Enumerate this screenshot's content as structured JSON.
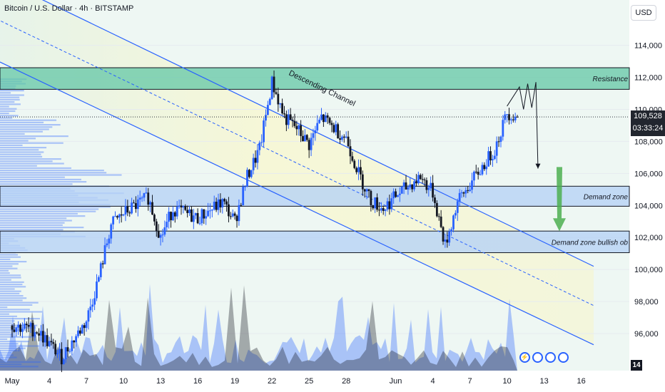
{
  "header": {
    "symbol_title": "Bitcoin / U.S. Dollar · 4h · BITSTAMP",
    "currency": "USD"
  },
  "price_axis": {
    "ticks": [
      "114,000",
      "112,000",
      "110,000",
      "108,000",
      "106,000",
      "104,000",
      "102,000",
      "100,000",
      "98,000",
      "96,000"
    ],
    "current_price": "109,528",
    "countdown": "03:33:24"
  },
  "time_axis": {
    "ticks": [
      "May",
      "4",
      "7",
      "10",
      "13",
      "16",
      "19",
      "22",
      "25",
      "28",
      "Jun",
      "4",
      "7",
      "10",
      "13",
      "16"
    ],
    "timezone_badge": "14"
  },
  "annotations": {
    "resistance": "Resistance",
    "demand_zone": "Demand zone",
    "demand_zone_ob": "Demand zone bullish ob",
    "channel": "Descending Channel"
  },
  "colors": {
    "up": "#2962ff",
    "down": "#131722",
    "resistance_fill": "#63c7a6",
    "demand_fill": "#b7d2f5",
    "channel_line": "#2962ff",
    "arrow_green": "#4caf50"
  },
  "icons": [
    "bolt-icon",
    "flag-icon",
    "flag-icon",
    "flag-icon"
  ],
  "chart_data": {
    "type": "candlestick",
    "symbol": "Bitcoin / U.S. Dollar",
    "timeframe": "4h",
    "exchange": "BITSTAMP",
    "ylim": [
      94000,
      116000
    ],
    "x_range_days": [
      "2025-05-01",
      "2025-06-17"
    ],
    "price_path": [
      {
        "x": "2025-05-01",
        "y": 96500
      },
      {
        "x": "2025-05-03",
        "y": 96200
      },
      {
        "x": "2025-05-05",
        "y": 94500
      },
      {
        "x": "2025-05-07",
        "y": 96800
      },
      {
        "x": "2025-05-08",
        "y": 99500
      },
      {
        "x": "2025-05-09",
        "y": 102800
      },
      {
        "x": "2025-05-10",
        "y": 103500
      },
      {
        "x": "2025-05-12",
        "y": 104500
      },
      {
        "x": "2025-05-13",
        "y": 102000
      },
      {
        "x": "2025-05-14",
        "y": 103800
      },
      {
        "x": "2025-05-16",
        "y": 103200
      },
      {
        "x": "2025-05-18",
        "y": 104200
      },
      {
        "x": "2025-05-19",
        "y": 103000
      },
      {
        "x": "2025-05-20",
        "y": 105800
      },
      {
        "x": "2025-05-21",
        "y": 107500
      },
      {
        "x": "2025-05-22",
        "y": 111700
      },
      {
        "x": "2025-05-23",
        "y": 109500
      },
      {
        "x": "2025-05-24",
        "y": 108800
      },
      {
        "x": "2025-05-25",
        "y": 107800
      },
      {
        "x": "2025-05-26",
        "y": 109500
      },
      {
        "x": "2025-05-28",
        "y": 108200
      },
      {
        "x": "2025-05-29",
        "y": 106000
      },
      {
        "x": "2025-05-30",
        "y": 104300
      },
      {
        "x": "2025-05-31",
        "y": 103800
      },
      {
        "x": "2025-06-01",
        "y": 104600
      },
      {
        "x": "2025-06-03",
        "y": 105800
      },
      {
        "x": "2025-06-04",
        "y": 104800
      },
      {
        "x": "2025-06-05",
        "y": 101500
      },
      {
        "x": "2025-06-06",
        "y": 104200
      },
      {
        "x": "2025-06-07",
        "y": 105300
      },
      {
        "x": "2025-06-09",
        "y": 107500
      },
      {
        "x": "2025-06-10",
        "y": 109800
      },
      {
        "x": "2025-06-10T20:00",
        "y": 109528
      }
    ],
    "current_price": 109528,
    "zones": [
      {
        "name": "Resistance",
        "low": 111250,
        "high": 112600
      },
      {
        "name": "Demand zone",
        "low": 103950,
        "high": 105200
      },
      {
        "name": "Demand zone bullish ob",
        "low": 101050,
        "high": 102400
      }
    ],
    "channel": {
      "name": "Descending Channel",
      "upper": [
        {
          "x": "2025-04-25",
          "y": 120000
        },
        {
          "x": "2025-06-17",
          "y": 100200
        }
      ],
      "lower": [
        {
          "x": "2025-04-25",
          "y": 114800
        },
        {
          "x": "2025-06-17",
          "y": 95300
        }
      ]
    },
    "projection": [
      {
        "x": "2025-06-10",
        "y": 110200
      },
      {
        "x": "2025-06-11",
        "y": 111400
      },
      {
        "x": "2025-06-11T08:00",
        "y": 110000
      },
      {
        "x": "2025-06-11T16:00",
        "y": 111600
      },
      {
        "x": "2025-06-12",
        "y": 110100
      },
      {
        "x": "2025-06-12T08:00",
        "y": 111700
      },
      {
        "x": "2025-06-12T12:00",
        "y": 106300
      }
    ]
  }
}
